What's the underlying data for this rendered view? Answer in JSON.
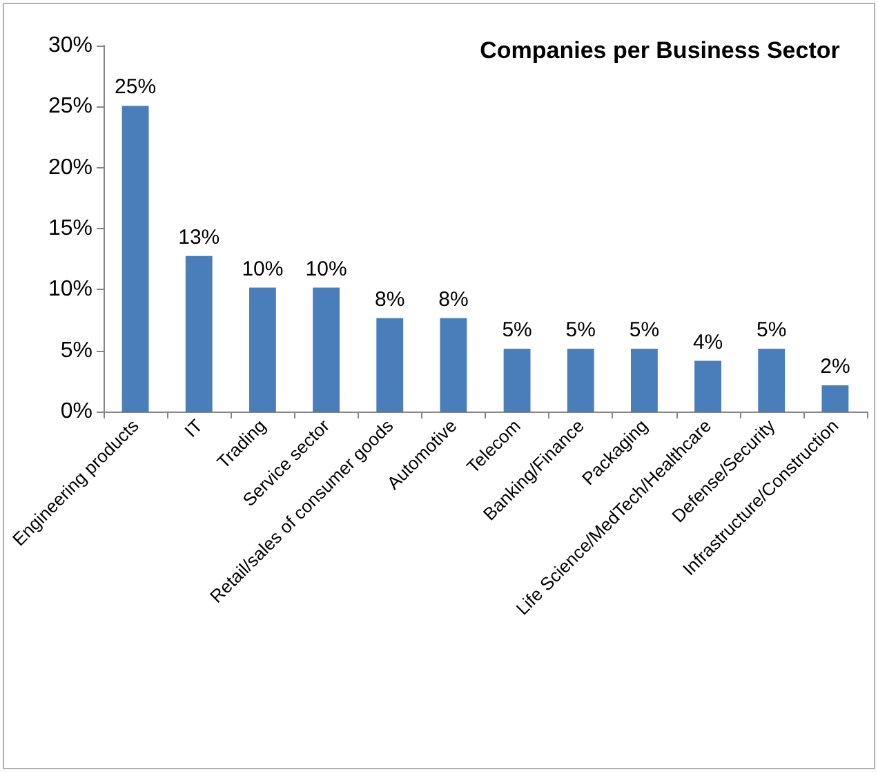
{
  "chart_data": {
    "type": "bar",
    "title": "Companies per Business Sector",
    "categories": [
      "Engineering products",
      "IT",
      "Trading",
      "Service sector",
      "Retail/sales of consumer goods",
      "Automotive",
      "Telecom",
      "Banking/Finance",
      "Packaging",
      "Life Science/MedTech/Healthcare",
      "Defense/Security",
      "Infrastructure/Construction"
    ],
    "values": [
      25,
      12.7,
      10.1,
      10.1,
      7.6,
      7.6,
      5.1,
      5.1,
      5.1,
      4.1,
      5.1,
      2.1
    ],
    "value_labels": [
      "25%",
      "13%",
      "10%",
      "10%",
      "8%",
      "8%",
      "5%",
      "5%",
      "5%",
      "4%",
      "5%",
      "2%"
    ],
    "color": "#4a7ebb",
    "ylim": [
      0,
      30
    ],
    "yticks": [
      {
        "value": 0,
        "label": "0%"
      },
      {
        "value": 5,
        "label": "5%"
      },
      {
        "value": 10,
        "label": "10%"
      },
      {
        "value": 15,
        "label": "15%"
      },
      {
        "value": 20,
        "label": "20%"
      },
      {
        "value": 25,
        "label": "25%"
      },
      {
        "value": 30,
        "label": "30%"
      }
    ],
    "grid": false
  }
}
